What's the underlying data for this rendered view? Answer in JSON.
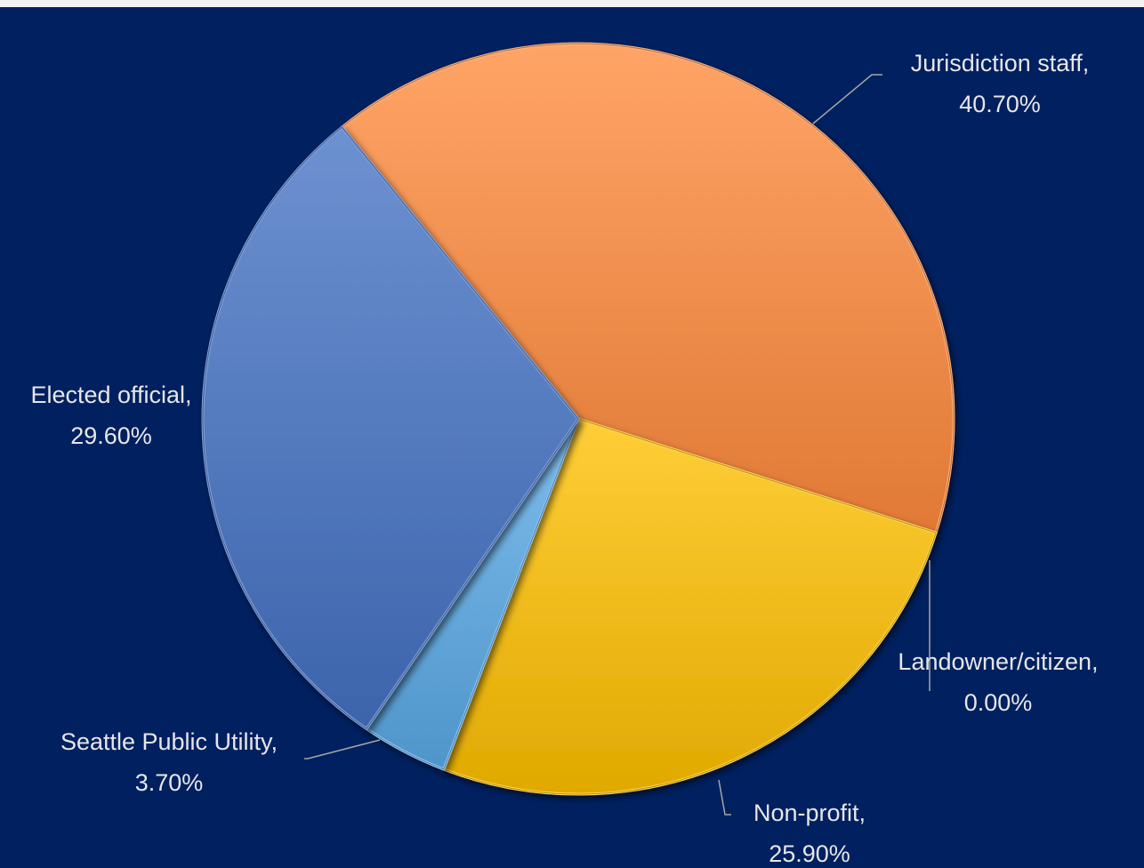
{
  "chart_data": {
    "type": "pie",
    "title": "",
    "slices": [
      {
        "label": "Jurisdiction staff,",
        "value": 40.7,
        "value_label": "40.70%",
        "color": "#ff8a3c"
      },
      {
        "label": "Landowner/citizen,",
        "value": 0.0,
        "value_label": "0.00%",
        "color": "#ffc000"
      },
      {
        "label": "Non-profit,",
        "value": 25.9,
        "value_label": "25.90%",
        "color": "#ffc000"
      },
      {
        "label": "Seattle Public Utility,",
        "value": 3.7,
        "value_label": "3.70%",
        "color": "#5aa9e6"
      },
      {
        "label": "Elected official,",
        "value": 29.6,
        "value_label": "29.60%",
        "color": "#4472c4"
      }
    ],
    "start_angle_deg": -39,
    "direction": "clockwise",
    "legend": "none",
    "data_labels": "outside with leader lines"
  },
  "colors": {
    "background": "#002060",
    "label_text": "#e6e6e6",
    "leader_line": "#a6a6a6"
  }
}
